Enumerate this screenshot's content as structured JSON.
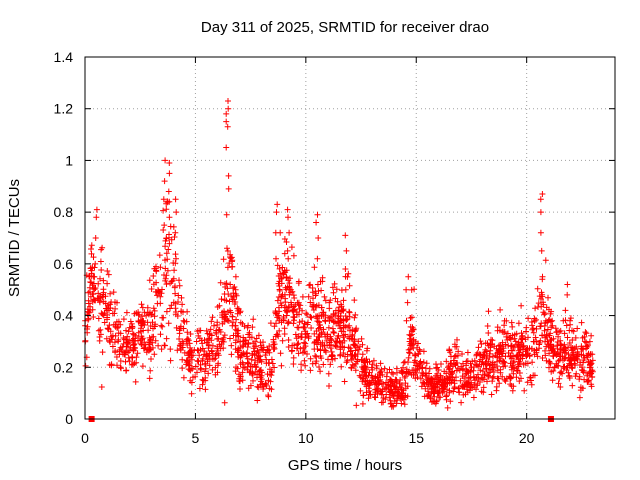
{
  "chart_data": {
    "type": "scatter",
    "title": "Day 311 of 2025, SRMTID for receiver drao",
    "xlabel": "GPS time / hours",
    "ylabel": "SRMTID / TECUs",
    "xlim": [
      0,
      24
    ],
    "ylim": [
      0,
      1.4
    ],
    "xticks": [
      0,
      5,
      10,
      15,
      20
    ],
    "yticks": [
      0,
      0.2,
      0.4,
      0.6,
      0.8,
      1,
      1.2,
      1.4
    ],
    "ytick_labels": [
      "0",
      "0.2",
      "0.4",
      "0.6",
      "0.8",
      "1",
      "1.2",
      "1.4"
    ],
    "xtick_labels": [
      "0",
      "5",
      "10",
      "15",
      "20"
    ],
    "grid": true,
    "marker": "plus",
    "series_color": "#ff0000",
    "baseline_markers": {
      "marker": "square",
      "x": [
        0.3,
        21.1
      ],
      "y": [
        0,
        0
      ]
    },
    "profile": {
      "x": [
        0.0,
        0.3,
        0.6,
        1.0,
        1.5,
        2.0,
        2.5,
        3.0,
        3.5,
        3.7,
        4.0,
        4.3,
        4.7,
        5.0,
        5.5,
        6.0,
        6.3,
        6.5,
        6.8,
        7.2,
        7.6,
        8.0,
        8.5,
        8.8,
        9.1,
        9.4,
        9.7,
        10.0,
        10.3,
        10.6,
        11.0,
        11.5,
        11.8,
        12.2,
        12.7,
        13.2,
        13.7,
        14.2,
        14.5,
        14.8,
        15.3,
        15.8,
        16.3,
        16.8,
        17.2,
        17.6,
        18.0,
        18.6,
        19.2,
        19.7,
        20.3,
        20.7,
        21.0,
        21.4,
        21.8,
        22.2,
        22.6,
        22.9
      ],
      "y": [
        0.38,
        0.5,
        0.46,
        0.4,
        0.3,
        0.28,
        0.31,
        0.34,
        0.52,
        0.65,
        0.55,
        0.35,
        0.25,
        0.22,
        0.26,
        0.3,
        0.4,
        0.55,
        0.36,
        0.26,
        0.24,
        0.2,
        0.25,
        0.45,
        0.5,
        0.4,
        0.35,
        0.3,
        0.4,
        0.36,
        0.32,
        0.34,
        0.38,
        0.26,
        0.18,
        0.14,
        0.12,
        0.11,
        0.13,
        0.3,
        0.18,
        0.12,
        0.14,
        0.22,
        0.15,
        0.17,
        0.21,
        0.24,
        0.26,
        0.25,
        0.26,
        0.4,
        0.32,
        0.24,
        0.26,
        0.25,
        0.23,
        0.21
      ],
      "spread": [
        0.1,
        0.12,
        0.14,
        0.1,
        0.08,
        0.07,
        0.09,
        0.1,
        0.16,
        0.2,
        0.16,
        0.11,
        0.08,
        0.07,
        0.08,
        0.09,
        0.12,
        0.18,
        0.12,
        0.08,
        0.08,
        0.07,
        0.09,
        0.14,
        0.16,
        0.12,
        0.1,
        0.09,
        0.12,
        0.11,
        0.1,
        0.1,
        0.12,
        0.08,
        0.06,
        0.05,
        0.05,
        0.05,
        0.06,
        0.1,
        0.06,
        0.05,
        0.05,
        0.08,
        0.06,
        0.06,
        0.07,
        0.08,
        0.08,
        0.08,
        0.09,
        0.14,
        0.1,
        0.08,
        0.09,
        0.08,
        0.07,
        0.06
      ]
    },
    "spikes": [
      {
        "x": 0.5,
        "y": [
          0.6,
          0.7,
          0.78,
          0.81
        ]
      },
      {
        "x": 3.6,
        "y": [
          0.75,
          0.85,
          0.92,
          1.0
        ]
      },
      {
        "x": 3.8,
        "y": [
          0.78,
          0.88,
          0.95,
          0.99
        ]
      },
      {
        "x": 4.1,
        "y": [
          0.62,
          0.72,
          0.8,
          0.85
        ]
      },
      {
        "x": 6.45,
        "y": [
          0.66,
          0.79,
          0.89,
          0.94,
          1.05,
          1.13,
          1.15,
          1.18,
          1.2,
          1.23
        ]
      },
      {
        "x": 8.7,
        "y": [
          0.62,
          0.72,
          0.8,
          0.83
        ]
      },
      {
        "x": 9.2,
        "y": [
          0.65,
          0.72,
          0.78,
          0.81
        ]
      },
      {
        "x": 10.5,
        "y": [
          0.62,
          0.7,
          0.76,
          0.79
        ]
      },
      {
        "x": 11.8,
        "y": [
          0.58,
          0.65,
          0.71
        ]
      },
      {
        "x": 14.6,
        "y": [
          0.38,
          0.45,
          0.5,
          0.55
        ]
      },
      {
        "x": 20.7,
        "y": [
          0.55,
          0.65,
          0.72,
          0.8,
          0.85,
          0.87
        ]
      },
      {
        "x": 21.8,
        "y": [
          0.42,
          0.48,
          0.52
        ]
      }
    ],
    "data_end_hour": 23.0,
    "sample_count": 2300
  }
}
